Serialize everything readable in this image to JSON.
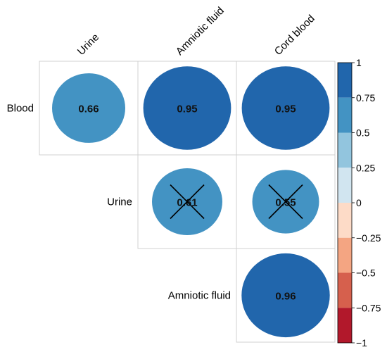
{
  "chart_data": {
    "type": "heatmap",
    "subtype": "correlation-matrix-upper-triangle",
    "column_labels": [
      "Urine",
      "Amniotic fluid",
      "Cord blood"
    ],
    "row_labels": [
      "Blood",
      "Urine",
      "Amniotic fluid"
    ],
    "cells": [
      {
        "row": "Blood",
        "col": "Urine",
        "value": 0.66,
        "label": "0.66",
        "crossed": false
      },
      {
        "row": "Blood",
        "col": "Amniotic fluid",
        "value": 0.95,
        "label": "0.95",
        "crossed": false
      },
      {
        "row": "Blood",
        "col": "Cord blood",
        "value": 0.95,
        "label": "0.95",
        "crossed": false
      },
      {
        "row": "Urine",
        "col": "Amniotic fluid",
        "value": 0.61,
        "label": "0.61",
        "crossed": true
      },
      {
        "row": "Urine",
        "col": "Cord blood",
        "value": 0.55,
        "label": "0.55",
        "crossed": true
      },
      {
        "row": "Amniotic fluid",
        "col": "Cord blood",
        "value": 0.96,
        "label": "0.96",
        "crossed": false
      }
    ],
    "colorbar": {
      "range": [
        -1,
        1
      ],
      "ticks": [
        {
          "value": 1,
          "label": "1"
        },
        {
          "value": 0.75,
          "label": "0.75"
        },
        {
          "value": 0.5,
          "label": "0.5"
        },
        {
          "value": 0.25,
          "label": "0.25"
        },
        {
          "value": 0,
          "label": "0"
        },
        {
          "value": -0.25,
          "label": "−0.25"
        },
        {
          "value": -0.5,
          "label": "−0.5"
        },
        {
          "value": -0.75,
          "label": "−0.75"
        },
        {
          "value": -1,
          "label": "−1"
        }
      ],
      "bands": [
        {
          "from": 0.75,
          "to": 1,
          "color": "#2166ac"
        },
        {
          "from": 0.5,
          "to": 0.75,
          "color": "#4393c3"
        },
        {
          "from": 0.25,
          "to": 0.5,
          "color": "#92c5de"
        },
        {
          "from": 0,
          "to": 0.25,
          "color": "#d1e5f0"
        },
        {
          "from": -0.25,
          "to": 0,
          "color": "#fddbc7"
        },
        {
          "from": -0.5,
          "to": -0.25,
          "color": "#f4a582"
        },
        {
          "from": -0.75,
          "to": -0.5,
          "color": "#d6604d"
        },
        {
          "from": -1,
          "to": -0.75,
          "color": "#b2182b"
        }
      ]
    },
    "legend_position": "right",
    "grid": true
  }
}
